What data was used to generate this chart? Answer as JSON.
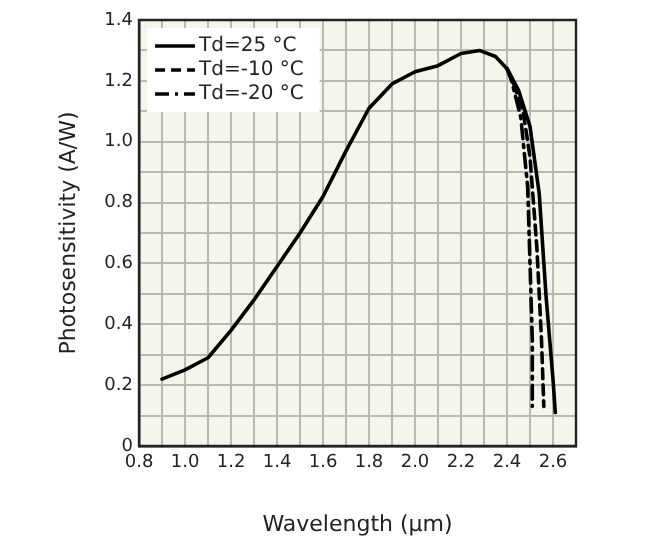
{
  "chart_data": {
    "type": "line",
    "xlabel": "Wavelength (µm)",
    "ylabel": "Photosensitivity (A/W)",
    "xlim": [
      0.8,
      2.7
    ],
    "ylim": [
      0,
      1.4
    ],
    "xticks": [
      0.8,
      {
        "value": 0.9,
        "label": null
      },
      "1.0",
      {
        "value": 1.1,
        "label": null
      },
      1.2,
      {
        "value": 1.3,
        "label": null
      },
      1.4,
      {
        "value": 1.5,
        "label": null
      },
      1.6,
      {
        "value": 1.7,
        "label": null
      },
      1.8,
      {
        "value": 1.9,
        "label": null
      },
      "2.0",
      {
        "value": 2.1,
        "label": null
      },
      2.2,
      {
        "value": 2.3,
        "label": null
      },
      2.4,
      {
        "value": 2.5,
        "label": null
      },
      2.6
    ],
    "yticks": [
      0,
      {
        "value": 0.1,
        "label": null
      },
      0.2,
      {
        "value": 0.3,
        "label": null
      },
      0.4,
      {
        "value": 0.5,
        "label": null
      },
      0.6,
      {
        "value": 0.7,
        "label": null
      },
      0.8,
      {
        "value": 0.9,
        "label": null
      },
      "1.0",
      {
        "value": 1.1,
        "label": null
      },
      1.2,
      {
        "value": 1.3,
        "label": null
      },
      1.4
    ],
    "grid": true,
    "legend": "top left",
    "marker": "none",
    "series": [
      {
        "name": "Td=25 °C",
        "color": "#000000",
        "line_style": "solid",
        "x": [
          0.9,
          1.0,
          1.1,
          1.2,
          1.3,
          1.4,
          1.5,
          1.6,
          1.7,
          1.8,
          1.9,
          2.0,
          2.1,
          2.2,
          2.28,
          2.35,
          2.4,
          2.45,
          2.5,
          2.54,
          2.57,
          2.6,
          2.61
        ],
        "values": [
          0.22,
          0.25,
          0.29,
          0.38,
          0.48,
          0.59,
          0.7,
          0.82,
          0.97,
          1.11,
          1.19,
          1.23,
          1.25,
          1.29,
          1.3,
          1.28,
          1.24,
          1.17,
          1.05,
          0.83,
          0.49,
          0.22,
          0.11
        ]
      },
      {
        "name": "Td=-10 °C",
        "color": "#000000",
        "line_style": "dashed",
        "x": [
          2.4,
          2.42,
          2.47,
          2.5,
          2.53,
          2.55,
          2.56
        ],
        "values": [
          1.24,
          1.21,
          1.1,
          0.95,
          0.65,
          0.35,
          0.13
        ]
      },
      {
        "name": "Td=-20 °C",
        "color": "#000000",
        "line_style": "dashdot",
        "x": [
          2.4,
          2.42,
          2.46,
          2.49,
          2.5,
          2.51,
          2.51
        ],
        "values": [
          1.24,
          1.2,
          1.08,
          0.85,
          0.6,
          0.35,
          0.13
        ]
      }
    ]
  }
}
